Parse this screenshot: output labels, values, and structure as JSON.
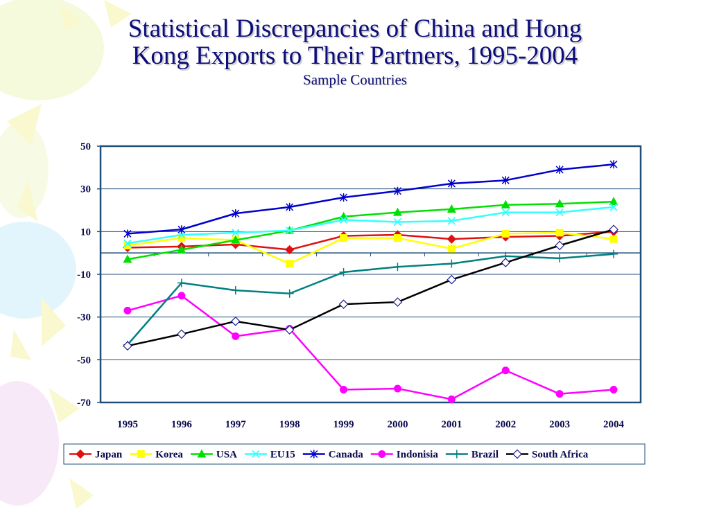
{
  "slide": {
    "title_line1": "Statistical Discrepancies of China and Hong",
    "title_line2": "Kong Exports to Their Partners, 1995-2004",
    "subtitle": "Sample Countries"
  },
  "chart_data": {
    "type": "line",
    "x": [
      1995,
      1996,
      1997,
      1998,
      1999,
      2000,
      2001,
      2002,
      2003,
      2004
    ],
    "ylim": [
      -70,
      50
    ],
    "yticks": [
      50,
      30,
      10,
      -10,
      -30,
      -50,
      -70
    ],
    "grid": true,
    "legend_position": "bottom",
    "series": [
      {
        "name": "Japan",
        "color": "#e01010",
        "marker": "diamond-filled",
        "values": [
          2.5,
          3,
          4,
          1.5,
          8,
          8.5,
          6.5,
          7.5,
          8,
          10
        ]
      },
      {
        "name": "Korea",
        "color": "#ffff00",
        "marker": "square-filled",
        "values": [
          3.5,
          7,
          6,
          -5,
          7,
          7,
          2,
          9,
          9.5,
          6.5
        ]
      },
      {
        "name": "USA",
        "color": "#00e000",
        "marker": "triangle-filled",
        "values": [
          -3,
          1.5,
          6,
          10.5,
          17,
          19,
          20.5,
          22.5,
          23,
          24
        ]
      },
      {
        "name": "EU15",
        "color": "#33ffff",
        "marker": "x",
        "values": [
          4.5,
          8.5,
          9.5,
          10.5,
          15.5,
          14.5,
          15,
          19,
          19,
          21.5
        ]
      },
      {
        "name": "Canada",
        "color": "#0000cc",
        "marker": "asterisk",
        "values": [
          9,
          11,
          18.5,
          21.5,
          26,
          29,
          32.5,
          34,
          39,
          41.5
        ]
      },
      {
        "name": "Indonisia",
        "color": "#ff00ff",
        "marker": "circle-filled",
        "values": [
          -27,
          -20,
          -39,
          -35.5,
          -64,
          -63.5,
          -68.5,
          -55,
          -66,
          -64
        ]
      },
      {
        "name": "Brazil",
        "color": "#008080",
        "marker": "plus",
        "values": [
          -43,
          -14,
          -17.5,
          -19,
          -9,
          -6.5,
          -5,
          -1.5,
          -2.5,
          -0.5
        ]
      },
      {
        "name": "South Africa",
        "color": "#000000",
        "marker": "diamond-open",
        "values": [
          -43.5,
          -38,
          -32,
          -36,
          -24,
          -23,
          -12.5,
          -4.5,
          3.5,
          11
        ]
      }
    ]
  }
}
